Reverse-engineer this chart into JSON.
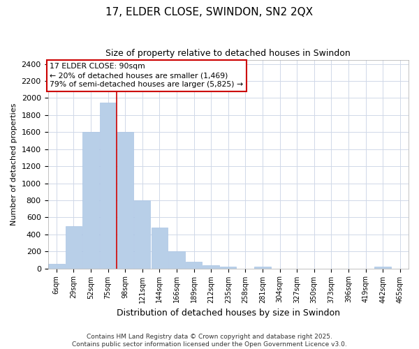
{
  "title": "17, ELDER CLOSE, SWINDON, SN2 2QX",
  "subtitle": "Size of property relative to detached houses in Swindon",
  "xlabel": "Distribution of detached houses by size in Swindon",
  "ylabel": "Number of detached properties",
  "categories": [
    "6sqm",
    "29sqm",
    "52sqm",
    "75sqm",
    "98sqm",
    "121sqm",
    "144sqm",
    "166sqm",
    "189sqm",
    "212sqm",
    "235sqm",
    "258sqm",
    "281sqm",
    "304sqm",
    "327sqm",
    "350sqm",
    "373sqm",
    "396sqm",
    "419sqm",
    "442sqm",
    "465sqm"
  ],
  "values": [
    50,
    500,
    1600,
    1950,
    1600,
    800,
    480,
    200,
    80,
    35,
    20,
    0,
    20,
    0,
    0,
    0,
    0,
    0,
    0,
    20,
    0
  ],
  "bar_color": "#b8cfe8",
  "bar_edge_color": "#aac4e4",
  "grid_color": "#d0d8e8",
  "background_color": "#ffffff",
  "fig_background_color": "#ffffff",
  "vline_x_index": 3.5,
  "vline_color": "#cc0000",
  "annotation_text": "17 ELDER CLOSE: 90sqm\n← 20% of detached houses are smaller (1,469)\n79% of semi-detached houses are larger (5,825) →",
  "annotation_box_edgecolor": "#cc0000",
  "ylim": [
    0,
    2450
  ],
  "yticks": [
    0,
    200,
    400,
    600,
    800,
    1000,
    1200,
    1400,
    1600,
    1800,
    2000,
    2200,
    2400
  ],
  "footer_line1": "Contains HM Land Registry data © Crown copyright and database right 2025.",
  "footer_line2": "Contains public sector information licensed under the Open Government Licence v3.0.",
  "fig_width": 6.0,
  "fig_height": 5.0,
  "dpi": 100
}
